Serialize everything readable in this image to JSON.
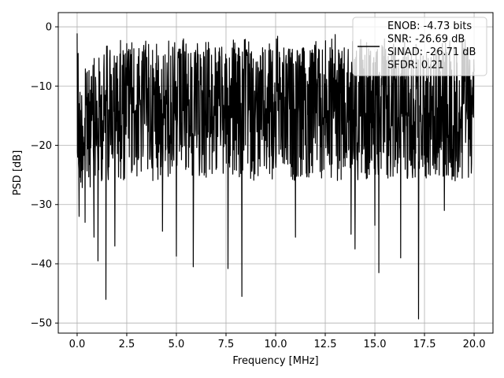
{
  "chart_data": {
    "type": "line",
    "title": "",
    "xlabel": "Frequency [MHz]",
    "ylabel": "PSD [dB]",
    "xlim": [
      -0.95,
      20.95
    ],
    "ylim": [
      -51.7,
      2.4
    ],
    "x_ticks": [
      0.0,
      2.5,
      5.0,
      7.5,
      10.0,
      12.5,
      15.0,
      17.5,
      20.0
    ],
    "x_tick_labels": [
      "0.0",
      "2.5",
      "5.0",
      "7.5",
      "10.0",
      "12.5",
      "15.0",
      "17.5",
      "20.0"
    ],
    "y_ticks": [
      0,
      -10,
      -20,
      -30,
      -40,
      -50
    ],
    "y_tick_labels": [
      "0",
      "−10",
      "−20",
      "−30",
      "−40",
      "−50"
    ],
    "grid": true,
    "legend_position": "top-right",
    "series": [
      {
        "name": "ENOB: -4.73 bits\nSNR: -26.69 dB\nSINAD: -26.71 dB\nSFDR: 0.21",
        "color": "#000000",
        "x_range": [
          0.0,
          20.0
        ],
        "noise_envelope": {
          "typical_top": -3.5,
          "typical_bottom": -26
        },
        "peaks": [
          {
            "x": 0.0,
            "y": -1.1
          },
          {
            "x": 0.05,
            "y": -4.5
          },
          {
            "x": 7.6,
            "y": -1.8
          },
          {
            "x": 10.1,
            "y": -1.6
          },
          {
            "x": 13.0,
            "y": -1.3
          },
          {
            "x": 16.5,
            "y": -2.5
          }
        ],
        "dips": [
          {
            "x": 0.1,
            "y": -32
          },
          {
            "x": 0.4,
            "y": -33
          },
          {
            "x": 0.85,
            "y": -35.5
          },
          {
            "x": 1.05,
            "y": -39.5
          },
          {
            "x": 1.45,
            "y": -46
          },
          {
            "x": 1.9,
            "y": -37
          },
          {
            "x": 4.3,
            "y": -34.5
          },
          {
            "x": 5.0,
            "y": -38.7
          },
          {
            "x": 5.85,
            "y": -40.5
          },
          {
            "x": 7.6,
            "y": -40.8
          },
          {
            "x": 8.3,
            "y": -45.5
          },
          {
            "x": 11.0,
            "y": -35.5
          },
          {
            "x": 13.8,
            "y": -35
          },
          {
            "x": 14.0,
            "y": -37.5
          },
          {
            "x": 15.0,
            "y": -33.5
          },
          {
            "x": 15.2,
            "y": -41.5
          },
          {
            "x": 16.3,
            "y": -39
          },
          {
            "x": 17.2,
            "y": -49.3
          },
          {
            "x": 18.5,
            "y": -31
          }
        ]
      }
    ]
  }
}
